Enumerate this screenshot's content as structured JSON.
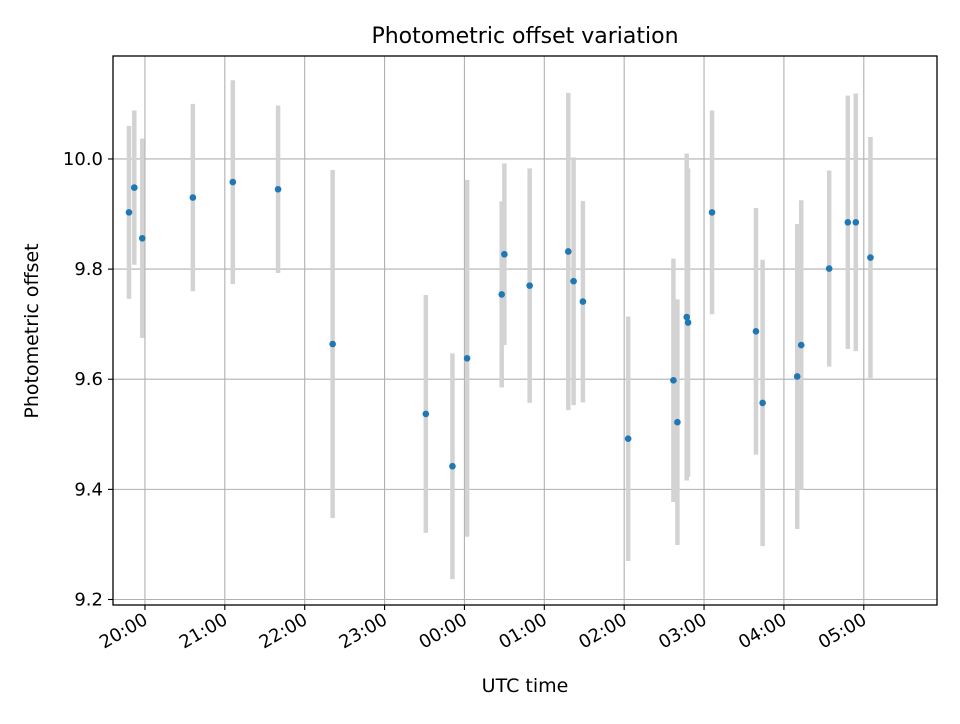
{
  "chart_data": {
    "type": "scatter",
    "title": "Photometric offset variation",
    "xlabel": "UTC time",
    "ylabel": "Photometric offset",
    "grid": true,
    "xlim": [
      "19:36",
      "05:55"
    ],
    "ylim": [
      9.19,
      10.187
    ],
    "x_ticks": [
      "20:00",
      "21:00",
      "22:00",
      "23:00",
      "00:00",
      "01:00",
      "02:00",
      "03:00",
      "04:00",
      "05:00"
    ],
    "y_ticks": [
      "9.2",
      "9.4",
      "9.6",
      "9.8",
      "10.0"
    ],
    "colors": {
      "points": "#1f77b4",
      "error_bars": "#d3d3d3"
    },
    "points": [
      {
        "x": "19:48",
        "y": 9.903,
        "yerr": 0.157
      },
      {
        "x": "19:52",
        "y": 9.948,
        "yerr": 0.14
      },
      {
        "x": "19:58",
        "y": 9.856,
        "yerr": 0.181
      },
      {
        "x": "20:36",
        "y": 9.93,
        "yerr": 0.17
      },
      {
        "x": "21:06",
        "y": 9.958,
        "yerr": 0.185
      },
      {
        "x": "21:40",
        "y": 9.945,
        "yerr": 0.152
      },
      {
        "x": "22:21",
        "y": 9.664,
        "yerr": 0.316
      },
      {
        "x": "23:31",
        "y": 9.537,
        "yerr": 0.216
      },
      {
        "x": "23:51",
        "y": 9.442,
        "yerr": 0.205
      },
      {
        "x": "00:02",
        "y": 9.638,
        "yerr": 0.324
      },
      {
        "x": "00:28",
        "y": 9.754,
        "yerr": 0.169
      },
      {
        "x": "00:30",
        "y": 9.827,
        "yerr": 0.165
      },
      {
        "x": "00:49",
        "y": 9.77,
        "yerr": 0.213
      },
      {
        "x": "01:18",
        "y": 9.832,
        "yerr": 0.288
      },
      {
        "x": "01:22",
        "y": 9.778,
        "yerr": 0.225
      },
      {
        "x": "01:29",
        "y": 9.741,
        "yerr": 0.183
      },
      {
        "x": "02:03",
        "y": 9.492,
        "yerr": 0.222
      },
      {
        "x": "02:37",
        "y": 9.598,
        "yerr": 0.221
      },
      {
        "x": "02:40",
        "y": 9.522,
        "yerr": 0.223
      },
      {
        "x": "02:47",
        "y": 9.713,
        "yerr": 0.297
      },
      {
        "x": "02:48",
        "y": 9.703,
        "yerr": 0.28
      },
      {
        "x": "03:06",
        "y": 9.903,
        "yerr": 0.185
      },
      {
        "x": "03:39",
        "y": 9.687,
        "yerr": 0.224
      },
      {
        "x": "03:44",
        "y": 9.557,
        "yerr": 0.26
      },
      {
        "x": "04:10",
        "y": 9.605,
        "yerr": 0.277
      },
      {
        "x": "04:13",
        "y": 9.662,
        "yerr": 0.263
      },
      {
        "x": "04:34",
        "y": 9.801,
        "yerr": 0.178
      },
      {
        "x": "04:48",
        "y": 9.885,
        "yerr": 0.23
      },
      {
        "x": "04:54",
        "y": 9.885,
        "yerr": 0.234
      },
      {
        "x": "05:05",
        "y": 9.821,
        "yerr": 0.219
      }
    ]
  }
}
